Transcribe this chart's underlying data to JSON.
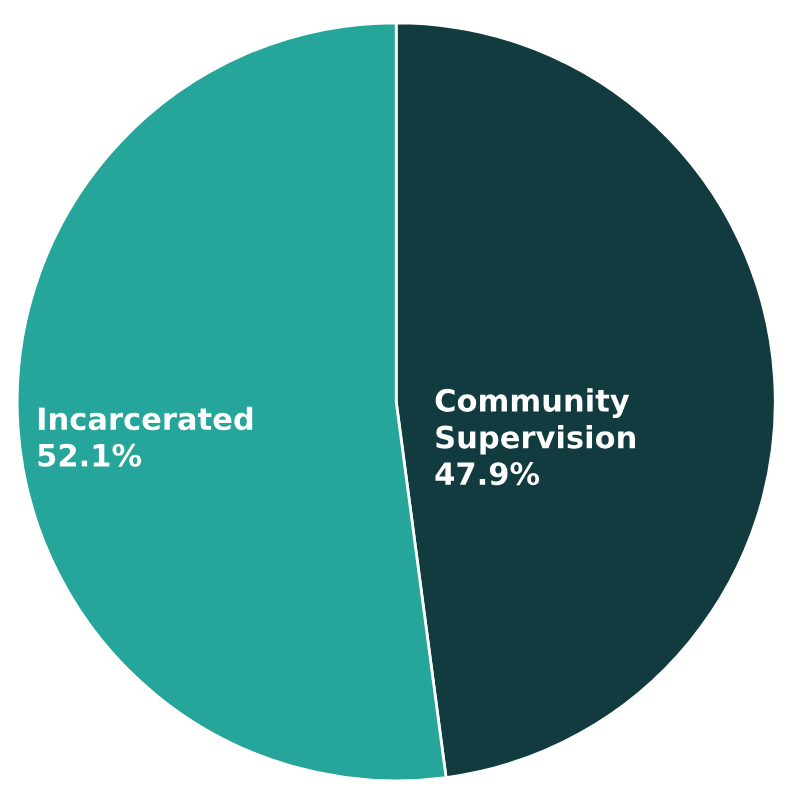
{
  "chart_data": {
    "type": "pie",
    "categories": [
      "Community Supervision",
      "Incarcerated"
    ],
    "values": [
      47.9,
      52.1
    ],
    "colors": [
      "#113b3f",
      "#26a69a"
    ],
    "value_labels": [
      "47.9%",
      "52.1%"
    ],
    "legend": false
  }
}
